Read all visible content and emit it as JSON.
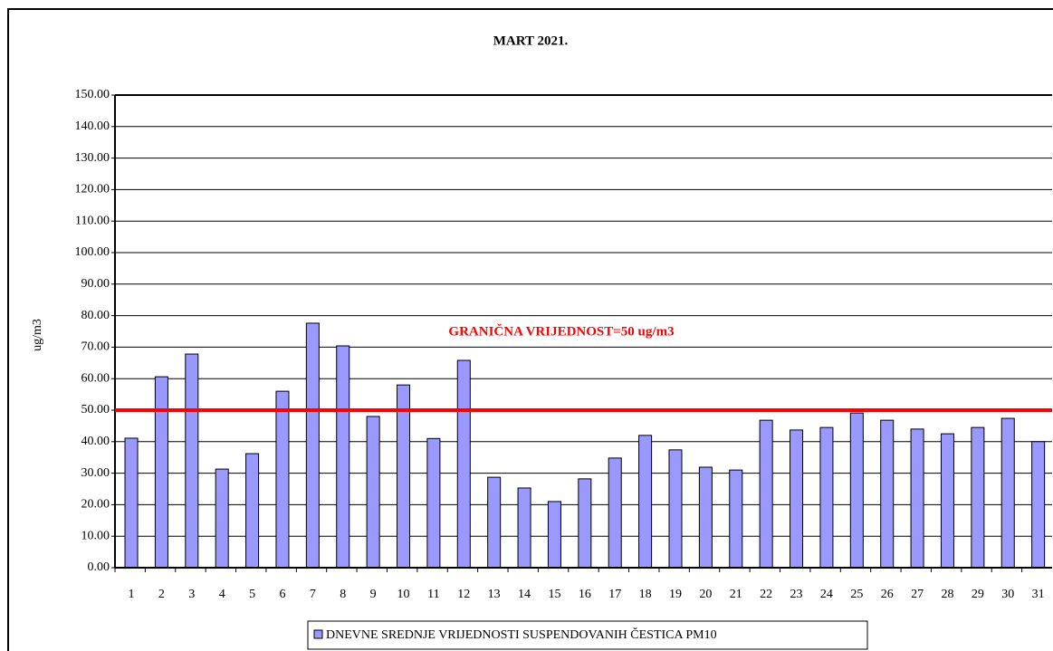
{
  "chart_data": {
    "type": "bar",
    "title": "MART 2021.",
    "y_label": "ug/m3",
    "categories": [
      "1",
      "2",
      "3",
      "4",
      "5",
      "6",
      "7",
      "8",
      "9",
      "10",
      "11",
      "12",
      "13",
      "14",
      "15",
      "16",
      "17",
      "18",
      "19",
      "20",
      "21",
      "22",
      "23",
      "24",
      "25",
      "26",
      "27",
      "28",
      "29",
      "30",
      "31"
    ],
    "series": [
      {
        "name": "DNEVNE SREDNJE VRIJEDNOSTI SUSPENDOVANIH ČESTICA PM10",
        "color": "#9999ff",
        "values": [
          41.1,
          60.6,
          67.8,
          31.3,
          36.2,
          56.0,
          77.6,
          70.4,
          48.0,
          58.0,
          41.0,
          65.8,
          28.7,
          25.3,
          21.0,
          28.2,
          34.8,
          42.0,
          37.4,
          31.9,
          31.0,
          46.8,
          43.7,
          44.5,
          49.1,
          46.8,
          44.0,
          42.5,
          44.5,
          47.4,
          40.0
        ]
      }
    ],
    "ylim": [
      0,
      150
    ],
    "yticks": [
      {
        "value": 0,
        "label": "0.00"
      },
      {
        "value": 10,
        "label": "10.00"
      },
      {
        "value": 20,
        "label": "20.00"
      },
      {
        "value": 30,
        "label": "30.00"
      },
      {
        "value": 40,
        "label": "40.00"
      },
      {
        "value": 50,
        "label": "50.00"
      },
      {
        "value": 60,
        "label": "60.00"
      },
      {
        "value": 70,
        "label": "70.00"
      },
      {
        "value": 80,
        "label": "80.00"
      },
      {
        "value": 90,
        "label": "90.00"
      },
      {
        "value": 100,
        "label": "100.00"
      },
      {
        "value": 110,
        "label": "110.00"
      },
      {
        "value": 120,
        "label": "120.00"
      },
      {
        "value": 130,
        "label": "130.00"
      },
      {
        "value": 140,
        "label": "140.00"
      },
      {
        "value": 150,
        "label": "150.00"
      }
    ],
    "grid": true,
    "legend": "bottom",
    "reference_line": {
      "value": 50,
      "label": "GRANIČNA VRIJEDNOST=50 ug/m3",
      "color": "#ff0000"
    }
  }
}
